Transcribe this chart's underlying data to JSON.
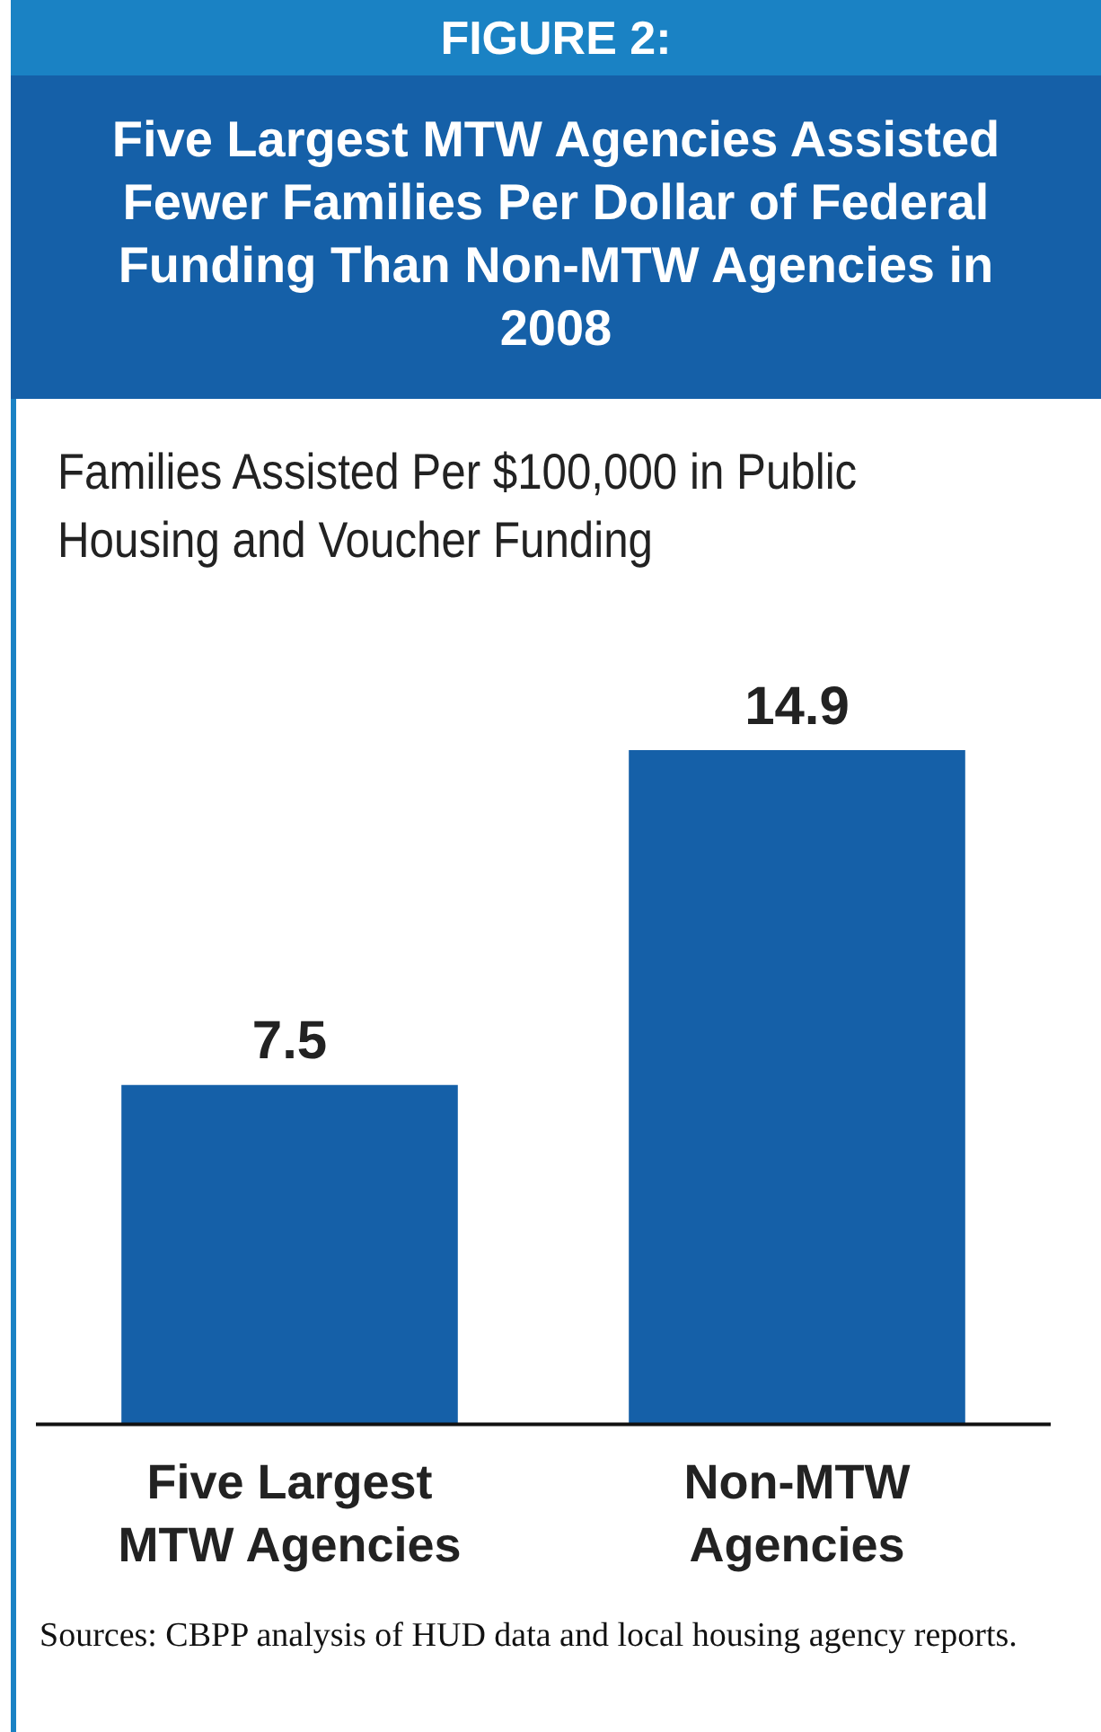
{
  "chart_data": {
    "type": "bar",
    "title": "FIGURE 2:",
    "subtitle": "Five Largest MTW Agencies Assisted Fewer Families Per Dollar of Federal Funding Than Non-MTW Agencies in 2008",
    "ylabel": "Families Assisted Per $100,000 in Public Housing and Voucher Funding",
    "categories": [
      "Five Largest MTW Agencies",
      "Non-MTW Agencies"
    ],
    "values": [
      7.5,
      14.9
    ],
    "color": "#1560a8",
    "data_labels": true,
    "grid": false,
    "legend": false,
    "annotations": [
      "Sources: CBPP analysis of HUD data and local housing agency reports."
    ]
  }
}
